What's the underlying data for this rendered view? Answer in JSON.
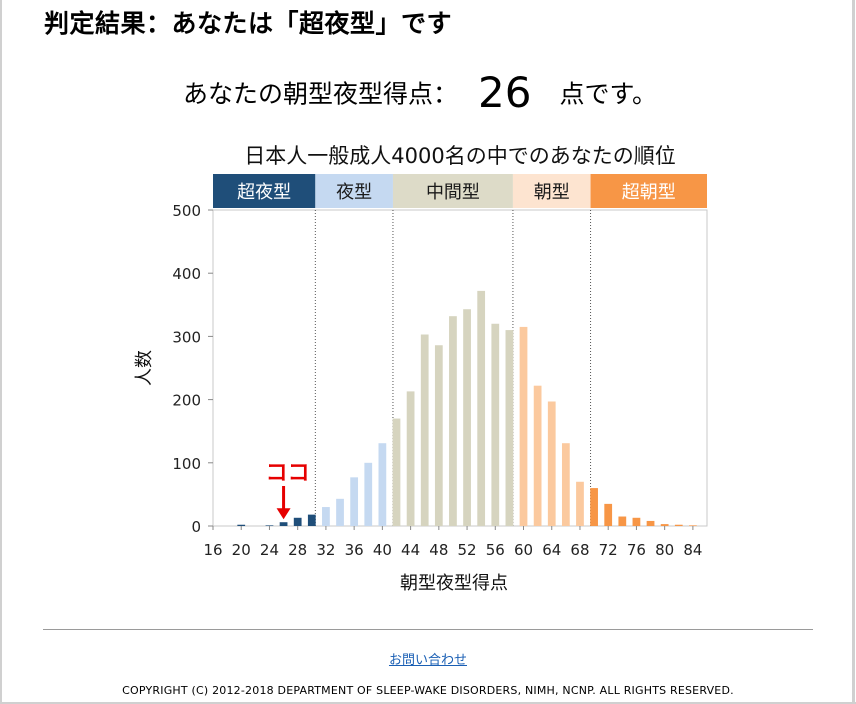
{
  "heading": "判定結果：あなたは「超夜型」です",
  "score": {
    "label": "あなたの朝型夜型得点：",
    "value": "26",
    "suffix": "点です。"
  },
  "chart_data": {
    "type": "bar",
    "title": "日本人一般成人4000名の中でのあなたの順位",
    "xlabel": "朝型夜型得点",
    "ylabel": "人数",
    "ylim": [
      0,
      500
    ],
    "xlim": [
      16,
      86
    ],
    "yticks": [
      0,
      100,
      200,
      300,
      400,
      500
    ],
    "xticks": [
      16,
      20,
      24,
      28,
      32,
      36,
      40,
      44,
      48,
      52,
      56,
      60,
      64,
      68,
      72,
      76,
      80,
      84
    ],
    "categories": [
      {
        "label": "超夜型",
        "range": [
          16,
          30
        ],
        "color": "#1f4e79",
        "bar": "#1f4e79",
        "text": "#ffffff"
      },
      {
        "label": "夜型",
        "range": [
          31,
          41
        ],
        "color": "#c5d9f1",
        "bar": "#c5d9f1",
        "text": "#1a1a1a"
      },
      {
        "label": "中間型",
        "range": [
          42,
          58
        ],
        "color": "#dddbc8",
        "bar": "#d6d4bf",
        "text": "#1a1a1a"
      },
      {
        "label": "朝型",
        "range": [
          59,
          69
        ],
        "color": "#fde4d0",
        "bar": "#fbc99e",
        "text": "#1a1a1a"
      },
      {
        "label": "超朝型",
        "range": [
          70,
          86
        ],
        "color": "#f79646",
        "bar": "#f79646",
        "text": "#ffffff"
      }
    ],
    "dividers": [
      30.5,
      41.5,
      58.5,
      69.5
    ],
    "x": [
      16,
      18,
      20,
      22,
      24,
      26,
      28,
      30,
      32,
      34,
      36,
      38,
      40,
      42,
      44,
      46,
      48,
      50,
      52,
      54,
      56,
      58,
      60,
      62,
      64,
      66,
      68,
      70,
      72,
      74,
      76,
      78,
      80,
      82,
      84
    ],
    "values": [
      0,
      0,
      2,
      0,
      1,
      6,
      13,
      18,
      30,
      43,
      77,
      100,
      131,
      170,
      213,
      303,
      286,
      332,
      343,
      372,
      320,
      310,
      315,
      222,
      197,
      131,
      70,
      60,
      35,
      15,
      13,
      8,
      3,
      2,
      1
    ],
    "marker": {
      "label": "ココ",
      "score": 26,
      "color": "#e60000"
    }
  },
  "footer": {
    "contact": "お問い合わせ",
    "copyright": "COPYRIGHT (C) 2012-2018 DEPARTMENT OF SLEEP-WAKE DISORDERS, NIMH, NCNP. ALL RIGHTS RESERVED."
  }
}
